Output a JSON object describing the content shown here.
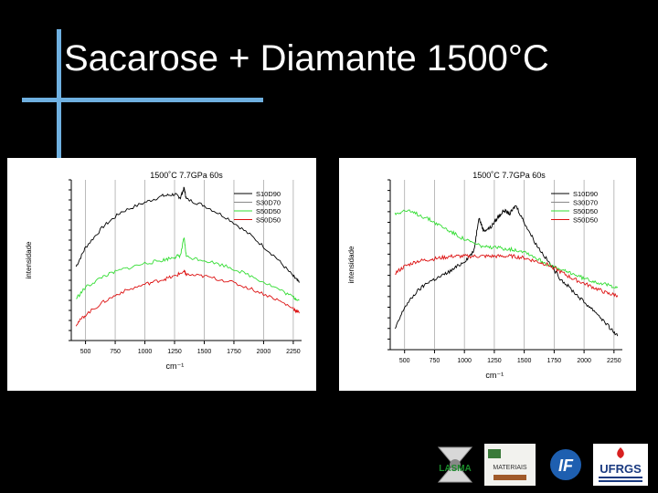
{
  "slide": {
    "title": "Sacarose + Diamante 1500°C"
  },
  "colors": {
    "accent": "#6fb0e0",
    "background": "#000000",
    "series": [
      "#000000",
      "#33dd33",
      "#dd1111"
    ]
  },
  "logos": [
    {
      "name": "lasma-logo",
      "text": "LASMA"
    },
    {
      "name": "materials-logo",
      "text": "MATERIAIS"
    },
    {
      "name": "if-logo",
      "text": "IF"
    },
    {
      "name": "ufrgs-logo",
      "text": "UFRGS"
    }
  ],
  "chart_data": [
    {
      "type": "line",
      "title": "1500˚C 7.7GPa 60s",
      "xlabel": "cm⁻¹",
      "ylabel": "intensidade",
      "xlim": [
        380,
        2320
      ],
      "ylim": [
        0,
        100
      ],
      "xticks": [
        500,
        750,
        1000,
        1250,
        1500,
        1750,
        2000,
        2250
      ],
      "grid": "vertical",
      "legend": "top-right",
      "series": [
        {
          "name": "S10D90",
          "color": "#000000",
          "x": [
            420,
            500,
            650,
            800,
            1000,
            1150,
            1250,
            1300,
            1330,
            1350,
            1500,
            1700,
            1900,
            2100,
            2250,
            2300
          ],
          "y": [
            46,
            58,
            71,
            80,
            86,
            90,
            91,
            89,
            95,
            88,
            84,
            76,
            65,
            52,
            40,
            36
          ]
        },
        {
          "name": "S30D70",
          "color": "#888888",
          "x": [],
          "y": []
        },
        {
          "name": "S50D50",
          "color": "#33dd33",
          "x": [
            420,
            500,
            650,
            800,
            1000,
            1150,
            1250,
            1300,
            1330,
            1350,
            1500,
            1700,
            1900,
            2100,
            2250,
            2300
          ],
          "y": [
            26,
            33,
            40,
            44,
            48,
            50,
            52,
            53,
            64,
            52,
            50,
            46,
            40,
            33,
            27,
            25
          ]
        },
        {
          "name": "S50D50",
          "color": "#dd1111",
          "x": [
            420,
            500,
            650,
            800,
            1000,
            1150,
            1250,
            1330,
            1350,
            1500,
            1700,
            1900,
            2100,
            2250,
            2300
          ],
          "y": [
            10,
            16,
            24,
            30,
            35,
            38,
            40,
            43,
            41,
            40,
            37,
            32,
            26,
            20,
            17
          ]
        }
      ]
    },
    {
      "type": "line",
      "title": "1500˚C 7.7GPa 60s",
      "xlabel": "cm⁻¹",
      "ylabel": "intensidade",
      "xlim": [
        380,
        2320
      ],
      "ylim": [
        0,
        100
      ],
      "xticks": [
        500,
        750,
        1000,
        1250,
        1500,
        1750,
        2000,
        2250
      ],
      "grid": "vertical",
      "legend": "top-right",
      "series": [
        {
          "name": "S10D90",
          "color": "#000000",
          "x": [
            420,
            500,
            600,
            700,
            800,
            900,
            1000,
            1080,
            1120,
            1160,
            1220,
            1280,
            1330,
            1380,
            1430,
            1500,
            1600,
            1700,
            1800,
            1900,
            2000,
            2100,
            2200,
            2280
          ],
          "y": [
            12,
            25,
            34,
            40,
            43,
            47,
            52,
            58,
            78,
            70,
            72,
            78,
            82,
            80,
            85,
            75,
            62,
            52,
            42,
            35,
            28,
            22,
            14,
            8
          ]
        },
        {
          "name": "S30D70",
          "color": "#888888",
          "x": [],
          "y": []
        },
        {
          "name": "S50D50",
          "color": "#33dd33",
          "x": [
            420,
            500,
            600,
            700,
            800,
            900,
            1000,
            1100,
            1200,
            1300,
            1400,
            1500,
            1600,
            1700,
            1800,
            1900,
            2000,
            2100,
            2200,
            2280
          ],
          "y": [
            80,
            82,
            80,
            77,
            73,
            69,
            65,
            62,
            60,
            60,
            59,
            58,
            54,
            50,
            47,
            45,
            42,
            40,
            38,
            37
          ]
        },
        {
          "name": "S50D50",
          "color": "#dd1111",
          "x": [
            420,
            500,
            600,
            700,
            800,
            900,
            1000,
            1100,
            1200,
            1300,
            1400,
            1500,
            1600,
            1700,
            1800,
            1900,
            2000,
            2100,
            2200,
            2280
          ],
          "y": [
            45,
            49,
            52,
            53,
            54,
            55,
            55,
            55,
            55,
            55,
            55,
            54,
            52,
            50,
            46,
            42,
            39,
            36,
            33,
            32
          ]
        }
      ]
    }
  ]
}
